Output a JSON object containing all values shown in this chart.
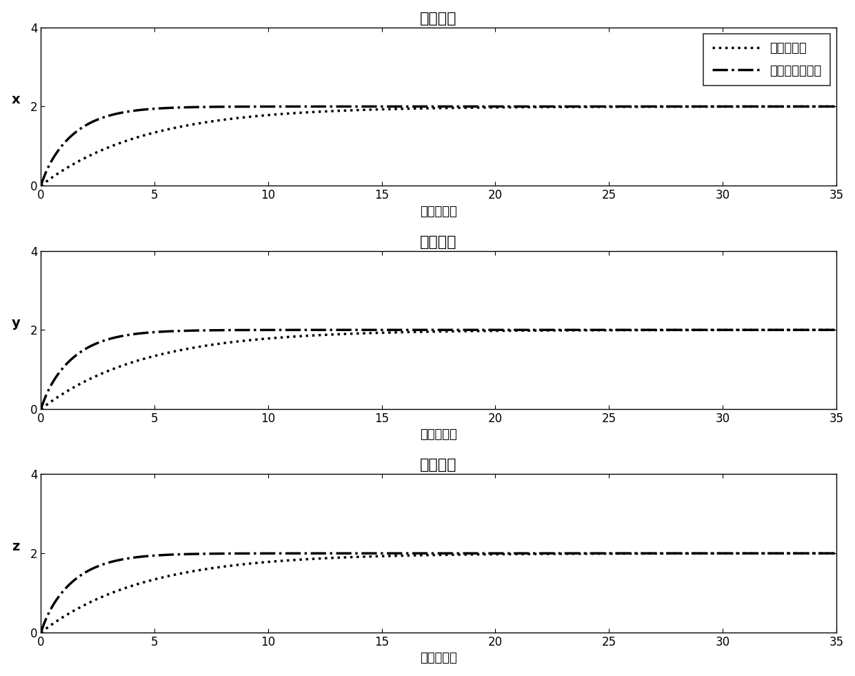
{
  "title": "位置跟踪",
  "xlabel": "时间（秒）",
  "ylabels": [
    "x",
    "y",
    "z"
  ],
  "xlim": [
    0,
    35
  ],
  "ylim": [
    0,
    4
  ],
  "yticks": [
    0,
    2,
    4
  ],
  "xticks": [
    0,
    5,
    10,
    15,
    20,
    25,
    30,
    35
  ],
  "legend_labels": [
    "线性滑模面",
    "快速终端滑模面"
  ],
  "target_value": 2.0,
  "t_end": 35,
  "dt": 0.005,
  "dotted_tau": 4.5,
  "dashdot_tau": 1.4,
  "dashdot_overshoot": 0.15,
  "dashdot_overshoot_decay": 0.8,
  "dashdot_overshoot_rise": 0.4,
  "bg_color": "#ffffff",
  "line_color": "#000000",
  "fontsize_title": 16,
  "fontsize_label": 13,
  "fontsize_tick": 12,
  "fontsize_legend": 13,
  "linewidth": 2.0
}
